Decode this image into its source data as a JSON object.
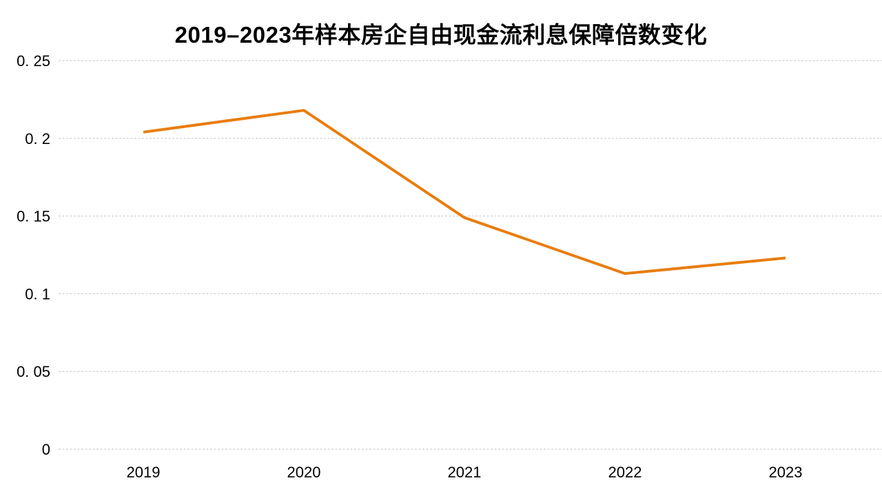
{
  "page": {
    "background_color": "#ffffff"
  },
  "chart_data": {
    "type": "line",
    "title": "2019–2023年样本房企自由现金流利息保障倍数变化",
    "categories": [
      "2019",
      "2020",
      "2021",
      "2022",
      "2023"
    ],
    "values": [
      0.204,
      0.218,
      0.149,
      0.113,
      0.123
    ],
    "xlabel": "",
    "ylabel": "",
    "ylim": [
      0,
      0.25
    ],
    "yticks": [
      0,
      0.05,
      0.1,
      0.15,
      0.2,
      0.25
    ],
    "ytick_labels": [
      "0",
      "0. 05",
      "0. 1",
      "0. 15",
      "0. 2",
      "0. 25"
    ],
    "grid": "horizontal-dashed",
    "legend": "none",
    "line_color": "#E87D0E",
    "gridline_color": "#C6C6C6",
    "title_color": "#000000",
    "tick_label_color": "#000000"
  }
}
